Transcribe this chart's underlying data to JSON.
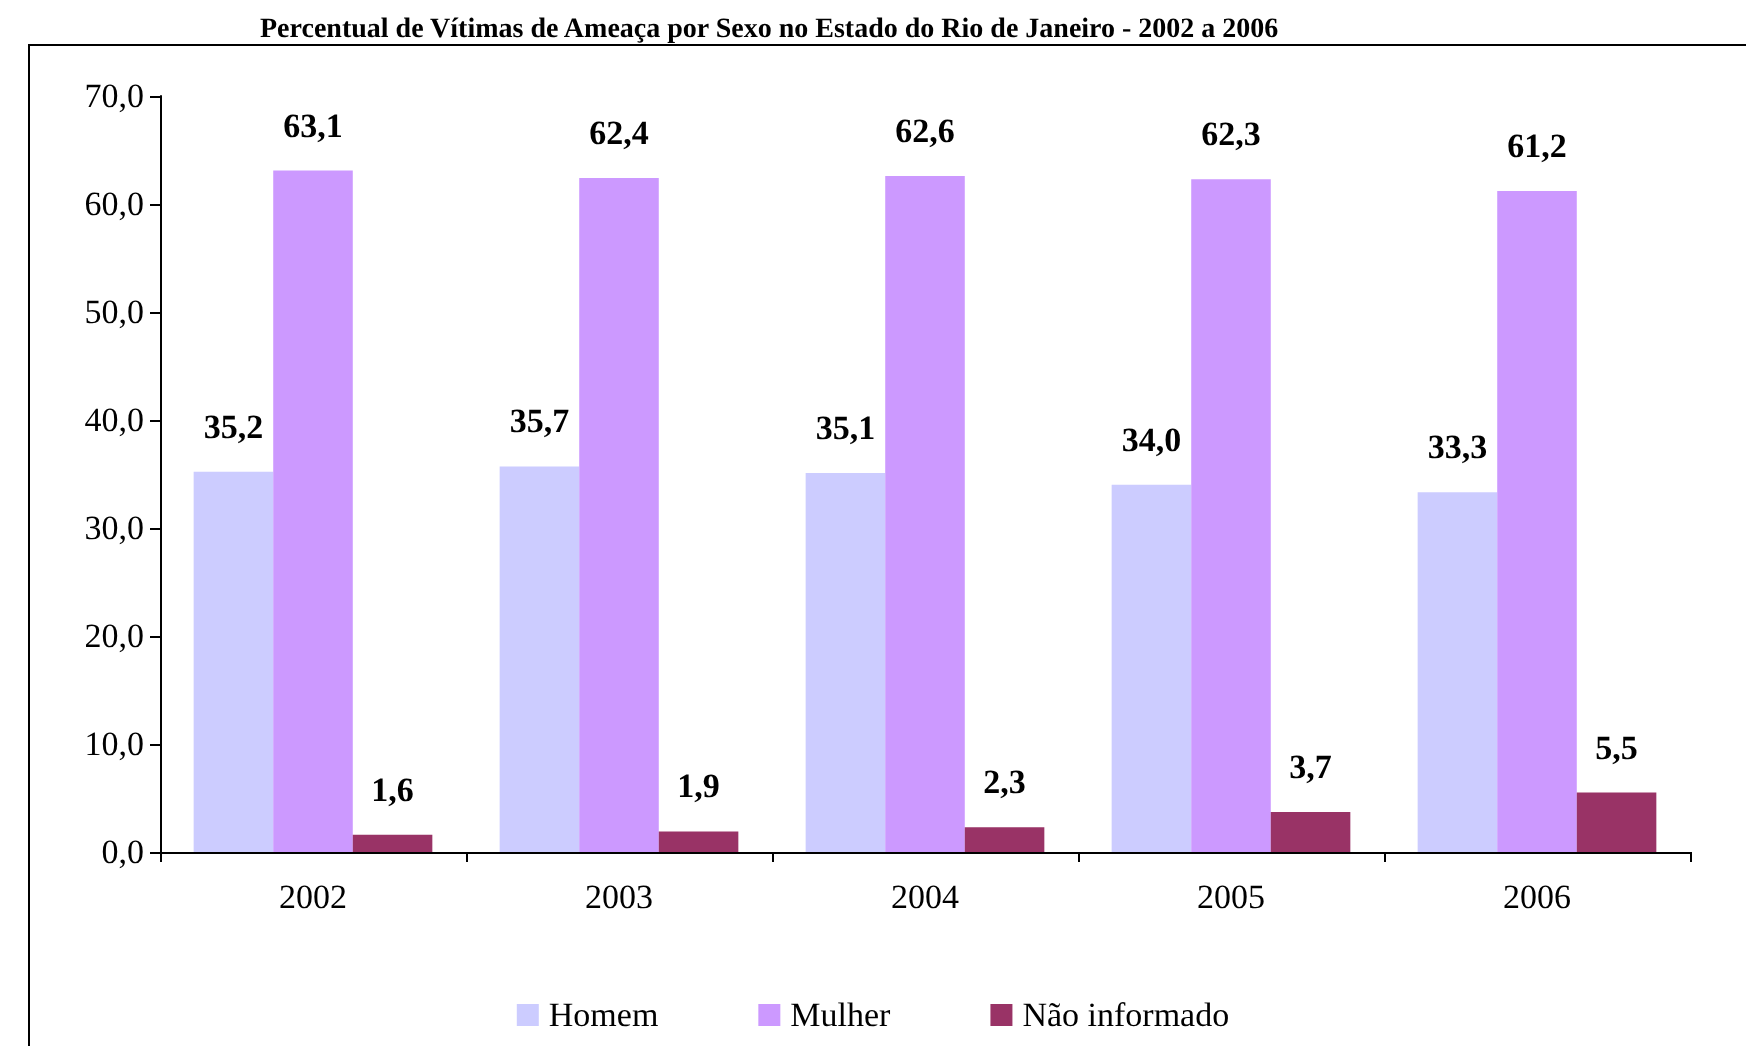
{
  "chart_data": {
    "type": "bar",
    "title": "Percentual de Vítimas de Ameaça por Sexo no Estado do Rio de Janeiro - 2002 a 2006",
    "categories": [
      "2002",
      "2003",
      "2004",
      "2005",
      "2006"
    ],
    "series": [
      {
        "name": "Homem",
        "color": "#ccccff",
        "values": [
          35.2,
          35.7,
          35.1,
          34.0,
          33.3
        ],
        "value_labels": [
          "35,2",
          "35,7",
          "35,1",
          "34,0",
          "33,3"
        ]
      },
      {
        "name": "Mulher",
        "color": "#cc99ff",
        "values": [
          63.1,
          62.4,
          62.6,
          62.3,
          61.2
        ],
        "value_labels": [
          "63,1",
          "62,4",
          "62,6",
          "62,3",
          "61,2"
        ]
      },
      {
        "name": "Não informado",
        "color": "#993366",
        "values": [
          1.6,
          1.9,
          2.3,
          3.7,
          5.5
        ],
        "value_labels": [
          "1,6",
          "1,9",
          "2,3",
          "3,7",
          "5,5"
        ]
      }
    ],
    "ylim": [
      0,
      70
    ],
    "yticks": [
      {
        "value": 0,
        "label": "0,0"
      },
      {
        "value": 10,
        "label": "10,0"
      },
      {
        "value": 20,
        "label": "20,0"
      },
      {
        "value": 30,
        "label": "30,0"
      },
      {
        "value": 40,
        "label": "40,0"
      },
      {
        "value": 50,
        "label": "50,0"
      },
      {
        "value": 60,
        "label": "60,0"
      },
      {
        "value": 70,
        "label": "70,0"
      }
    ],
    "grid": false,
    "legend": "bottom"
  }
}
